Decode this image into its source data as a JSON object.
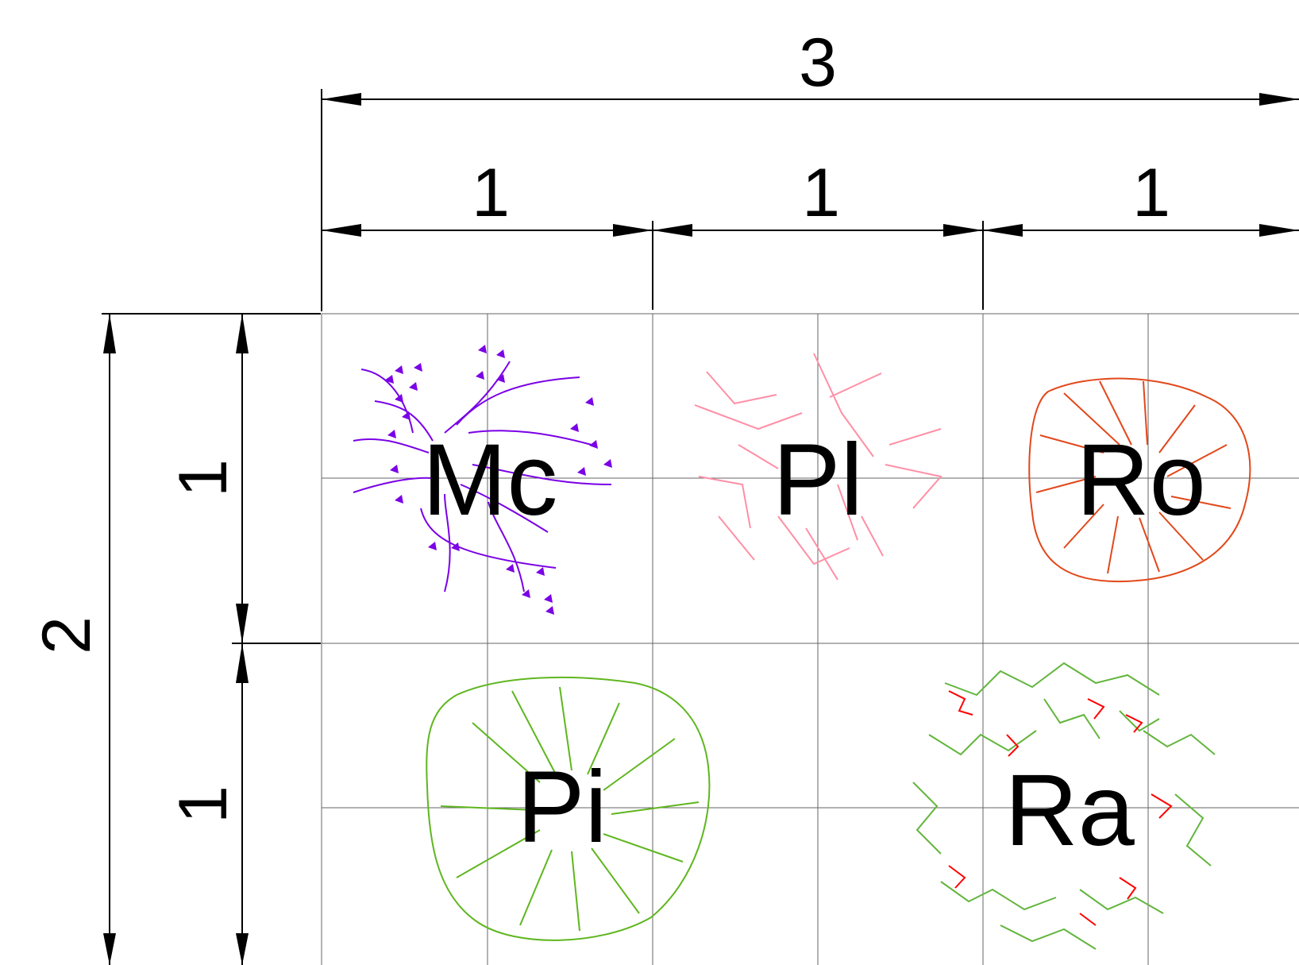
{
  "dimensions": {
    "top_total": "3",
    "top_segments": [
      "1",
      "1",
      "1"
    ],
    "left_total": "2",
    "left_segments": [
      "1",
      "1"
    ]
  },
  "plants": [
    {
      "code": "Mc",
      "color": "#7a00e6",
      "symbol": "leaf-cluster"
    },
    {
      "code": "Pl",
      "color": "#ff8fa6",
      "symbol": "branch-tree"
    },
    {
      "code": "Ro",
      "color": "#e2481b",
      "symbol": "canopy-tree"
    },
    {
      "code": "Pi",
      "color": "#5fb61f",
      "symbol": "canopy-tree"
    },
    {
      "code": "Ra",
      "color": "#62b53c",
      "accent_color": "#ff0000",
      "symbol": "textured-tree"
    }
  ]
}
